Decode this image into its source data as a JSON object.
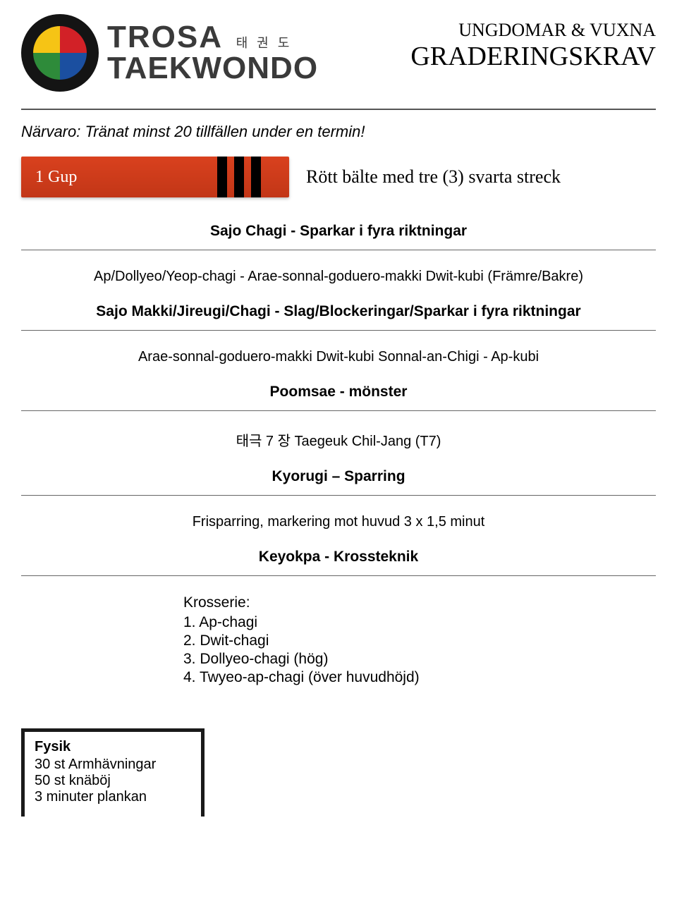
{
  "logo": {
    "line1": "TROSA",
    "korean": "태 권 도",
    "line2": "TAEKWONDO",
    "quad_colors": {
      "q1": "#f6c415",
      "q2": "#d22127",
      "q3": "#2e8b3a",
      "q4": "#1b4fa0"
    },
    "circle_bg": "#141414"
  },
  "header": {
    "sub": "UNGDOMAR & VUXNA",
    "main": "GRADERINGSKRAV"
  },
  "attendance": "Närvaro: Tränat minst 20 tillfällen under en termin!",
  "belt": {
    "gup_label": "1 Gup",
    "color": "#d9411e",
    "stripe_color": "#000000",
    "stripe_count": 3,
    "description": "Rött bälte med tre (3) svarta streck"
  },
  "sections": {
    "sajo_chagi_title": "Sajo Chagi - Sparkar i fyra riktningar",
    "sajo_chagi_body": "Ap/Dollyeo/Yeop-chagi - Arae-sonnal-goduero-makki Dwit-kubi (Främre/Bakre)",
    "sajo_makki_title": "Sajo Makki/Jireugi/Chagi - Slag/Blockeringar/Sparkar i fyra riktningar",
    "sajo_makki_body": "Arae-sonnal-goduero-makki Dwit-kubi Sonnal-an-Chigi - Ap-kubi",
    "poomsae_title": "Poomsae - mönster",
    "poomsae_body": "태극 7 장 Taegeuk Chil-Jang (T7)",
    "kyorugi_title": "Kyorugi – Sparring",
    "kyorugi_body": "Frisparring, markering mot huvud 3 x 1,5 minut",
    "keyokpa_title": "Keyokpa - Krossteknik"
  },
  "krosserie": {
    "label": "Krosserie:",
    "items": [
      "1. Ap-chagi",
      "2. Dwit-chagi",
      "3. Dollyeo-chagi (hög)",
      "4. Twyeo-ap-chagi (över huvudhöjd)"
    ]
  },
  "fysik": {
    "title": "Fysik",
    "lines": [
      "30 st Armhävningar",
      "50 st knäböj",
      "3 minuter plankan"
    ]
  }
}
